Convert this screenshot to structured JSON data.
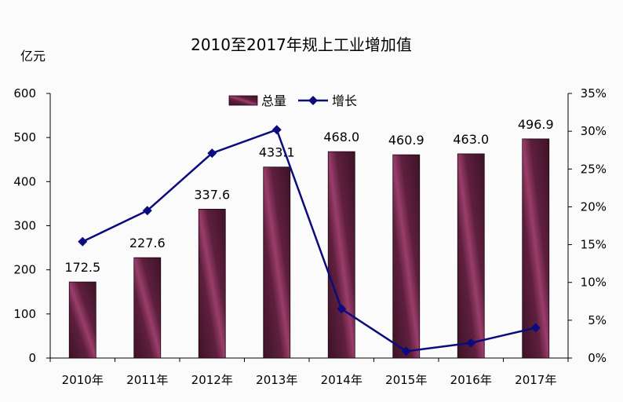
{
  "chart_data": {
    "type": "bar",
    "title": "2010至2017年规上工业增加值",
    "ylabel": "亿元",
    "categories": [
      "2010年",
      "2011年",
      "2012年",
      "2013年",
      "2014年",
      "2015年",
      "2016年",
      "2017年"
    ],
    "series": [
      {
        "name": "总量",
        "type": "bar",
        "axis": "left",
        "values": [
          172.5,
          227.6,
          337.6,
          433.1,
          468.0,
          460.9,
          463.0,
          496.9
        ],
        "labels": [
          "172.5",
          "227.6",
          "337.6",
          "433.1",
          "468.0",
          "460.9",
          "463.0",
          "496.9"
        ]
      },
      {
        "name": "增长",
        "type": "line",
        "axis": "right",
        "values": [
          15.4,
          19.5,
          27.1,
          30.2,
          6.5,
          0.9,
          2.0,
          4.0
        ]
      }
    ],
    "y_left": {
      "ylim": [
        0,
        600
      ],
      "ticks": [
        "0",
        "100",
        "200",
        "300",
        "400",
        "500",
        "600"
      ]
    },
    "y_right": {
      "ylim": [
        0,
        35
      ],
      "ticks": [
        "0%",
        "5%",
        "10%",
        "15%",
        "20%",
        "25%",
        "30%",
        "35%"
      ]
    },
    "legend_position": "top-center",
    "colors": {
      "bar_dark": "#3d1326",
      "bar_light": "#9a3d6b",
      "line": "#0b0b7e",
      "axis": "#000000"
    }
  }
}
